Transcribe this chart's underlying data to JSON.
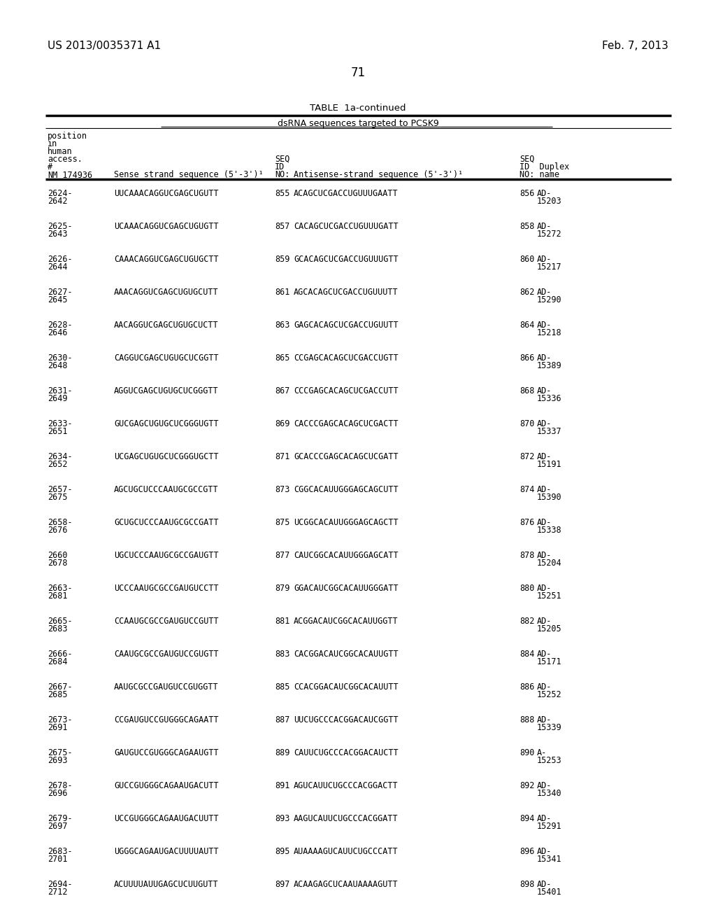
{
  "patent_number": "US 2013/0035371 A1",
  "date": "Feb. 7, 2013",
  "page_number": "71",
  "table_title": "TABLE  1a-continued",
  "table_subtitle": "dsRNA sequences targeted to PCSK9",
  "rows": [
    {
      "pos": "2624-\n2642",
      "sense": "UUCAAACAGGUCGAGCUGUTT",
      "seq1": "855",
      "antisense": "ACAGCUCGACCUGUUUGAATT",
      "seq2": "856",
      "duplex": "AD-\n15203"
    },
    {
      "pos": "2625-\n2643",
      "sense": "UCAAACAGGUCGAGCUGUGTT",
      "seq1": "857",
      "antisense": "CACAGCUCGACCUGUUUGATT",
      "seq2": "858",
      "duplex": "AD-\n15272"
    },
    {
      "pos": "2626-\n2644",
      "sense": "CAAACAGGUCGAGCUGUGCTT",
      "seq1": "859",
      "antisense": "GCACAGCUCGACCUGUUUGTT",
      "seq2": "860",
      "duplex": "AD-\n15217"
    },
    {
      "pos": "2627-\n2645",
      "sense": "AAACAGGUCGAGCUGUGCUTT",
      "seq1": "861",
      "antisense": "AGCACAGCUCGACCUGUUUTT",
      "seq2": "862",
      "duplex": "AD-\n15290"
    },
    {
      "pos": "2628-\n2646",
      "sense": "AACAGGUCGAGCUGUGCUCTT",
      "seq1": "863",
      "antisense": "GAGCACAGCUCGACCUGUUTT",
      "seq2": "864",
      "duplex": "AD-\n15218"
    },
    {
      "pos": "2630-\n2648",
      "sense": "CAGGUCGAGCUGUGCUCGGTT",
      "seq1": "865",
      "antisense": "CCGAGCACAGCUCGACCUGTT",
      "seq2": "866",
      "duplex": "AD-\n15389"
    },
    {
      "pos": "2631-\n2649",
      "sense": "AGGUCGAGCUGUGCUCGGGTT",
      "seq1": "867",
      "antisense": "CCCGAGCACAGCUCGACCUTT",
      "seq2": "868",
      "duplex": "AD-\n15336"
    },
    {
      "pos": "2633-\n2651",
      "sense": "GUCGAGCUGUGCUCGGGUGTT",
      "seq1": "869",
      "antisense": "CACCCGAGCACAGCUCGACTT",
      "seq2": "870",
      "duplex": "AD-\n15337"
    },
    {
      "pos": "2634-\n2652",
      "sense": "UCGAGCUGUGCUCGGGUGCTT",
      "seq1": "871",
      "antisense": "GCACCCGAGCACAGCUCGATT",
      "seq2": "872",
      "duplex": "AD-\n15191"
    },
    {
      "pos": "2657-\n2675",
      "sense": "AGCUGCUCCCAAUGCGCCGTT",
      "seq1": "873",
      "antisense": "CGGCACAUUGGGAGCAGCUTT",
      "seq2": "874",
      "duplex": "AD-\n15390"
    },
    {
      "pos": "2658-\n2676",
      "sense": "GCUGCUCCCAAUGCGCCGATT",
      "seq1": "875",
      "antisense": "UCGGCACAUUGGGAGCAGCTT",
      "seq2": "876",
      "duplex": "AD-\n15338"
    },
    {
      "pos": "2660\n2678",
      "sense": "UGCUCCCAAUGCGCCGAUGTT",
      "seq1": "877",
      "antisense": "CAUCGGCACAUUGGGAGCATT",
      "seq2": "878",
      "duplex": "AD-\n15204"
    },
    {
      "pos": "2663-\n2681",
      "sense": "UCCCAAUGCGCCGAUGUCCTT",
      "seq1": "879",
      "antisense": "GGACAUCGGCACAUUGGGATT",
      "seq2": "880",
      "duplex": "AD-\n15251"
    },
    {
      "pos": "2665-\n2683",
      "sense": "CCAAUGCGCCGAUGUCCGUTT",
      "seq1": "881",
      "antisense": "ACGGACAUCGGCACAUUGGTT",
      "seq2": "882",
      "duplex": "AD-\n15205"
    },
    {
      "pos": "2666-\n2684",
      "sense": "CAAUGCGCCGAUGUCCGUGTT",
      "seq1": "883",
      "antisense": "CACGGACAUCGGCACAUUGTT",
      "seq2": "884",
      "duplex": "AD-\n15171"
    },
    {
      "pos": "2667-\n2685",
      "sense": "AAUGCGCCGAUGUCCGUGGTT",
      "seq1": "885",
      "antisense": "CCACGGACAUCGGCACAUUTT",
      "seq2": "886",
      "duplex": "AD-\n15252"
    },
    {
      "pos": "2673-\n2691",
      "sense": "CCGAUGUCCGUGGGCAGAATT",
      "seq1": "887",
      "antisense": "UUCUGCCCACGGACAUCGGTT",
      "seq2": "888",
      "duplex": "AD-\n15339"
    },
    {
      "pos": "2675-\n2693",
      "sense": "GAUGUCCGUGGGCAGAAUGTT",
      "seq1": "889",
      "antisense": "CAUUCUGCCCACGGACAUCTT",
      "seq2": "890",
      "duplex": "A-\n15253"
    },
    {
      "pos": "2678-\n2696",
      "sense": "GUCCGUGGGCAGAAUGACUTT",
      "seq1": "891",
      "antisense": "AGUCAUUCUGCCCACGGACTT",
      "seq2": "892",
      "duplex": "AD-\n15340"
    },
    {
      "pos": "2679-\n2697",
      "sense": "UCCGUGGGCAGAAUGACUUTT",
      "seq1": "893",
      "antisense": "AAGUCAUUCUGCCCACGGATT",
      "seq2": "894",
      "duplex": "AD-\n15291"
    },
    {
      "pos": "2683-\n2701",
      "sense": "UGGGCAGAAUGACUUUUAUTT",
      "seq1": "895",
      "antisense": "AUAAAAGUCAUUCUGCCCATT",
      "seq2": "896",
      "duplex": "AD-\n15341"
    },
    {
      "pos": "2694-\n2712",
      "sense": "ACUUUUAUUGAGCUCUUGUTT",
      "seq1": "897",
      "antisense": "ACAAGAGCUCAAUAAAAGUTT",
      "seq2": "898",
      "duplex": "AD-\n15401"
    }
  ],
  "bg_color": "#ffffff",
  "text_color": "#000000"
}
